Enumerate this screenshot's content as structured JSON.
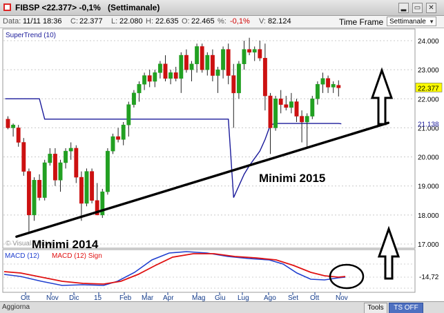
{
  "window": {
    "symbol_title": "FIBSP <22.377> -0,1%",
    "period_title": "(Settimanale)",
    "minimize_glyph": "▂",
    "restore_glyph": "▭",
    "close_glyph": "✕"
  },
  "info_bar": {
    "date_label": "Data:",
    "date_value": "11/11 18:36",
    "close_label": "C:",
    "close_value": "22.377",
    "low_label": "L:",
    "low_value": "22.080",
    "high_label": "H:",
    "high_value": "22.635",
    "open_label": "O:",
    "open_value": "22.465",
    "pct_label": "%:",
    "pct_value": "-0,1%",
    "volume_label": "V:",
    "volume_value": "82.124",
    "timeframe_label": "Time Frame",
    "timeframe_value": "Settimanale"
  },
  "price_panel": {
    "indicator_label": "SuperTrend (10)",
    "watermark": "© Visual Trader",
    "price_axis": [
      "24.000",
      "23.000",
      "22.000",
      "21.000",
      "20.000",
      "19.000",
      "18.000",
      "17.000"
    ],
    "last_price_tag": "22.377",
    "supertrend_tag": "21.138",
    "annotation_2015": "Minimi 2015",
    "annotation_2014": "Minimi 2014",
    "up_arrow_icon": "up-arrow-icon"
  },
  "macd_panel": {
    "label_macd": "MACD (12)",
    "label_signal": "MACD (12) Sign",
    "value_tag": "-14,72",
    "circle_icon": "ellipse-annotation-icon"
  },
  "time_axis": [
    "Ott",
    "Nov",
    "Dic",
    "15",
    "Feb",
    "Mar",
    "Apr",
    "Mag",
    "Giu",
    "Lug",
    "Ago",
    "Set",
    "Ott",
    "Nov"
  ],
  "status_bar": {
    "left_text": "Aggiorna",
    "tools_label": "Tools",
    "ts_label": "TS OFF"
  },
  "colors": {
    "bull": "#22a022",
    "bear": "#cc1111",
    "supertrend": "#1a1a9a",
    "macd": "#1f3fcf",
    "signal": "#e01010",
    "price_tag_bg": "#ffff00",
    "axis_blue": "#123a8a"
  },
  "chart_data": {
    "type": "candlestick",
    "timeframe": "weekly",
    "y_range": [
      17.0,
      24.2
    ],
    "candles": [
      {
        "o": 21.3,
        "h": 21.4,
        "l": 20.95,
        "c": 21.0
      },
      {
        "o": 21.0,
        "h": 21.15,
        "l": 20.7,
        "c": 21.1
      },
      {
        "o": 21.0,
        "h": 21.1,
        "l": 20.35,
        "c": 20.5
      },
      {
        "o": 20.5,
        "h": 20.65,
        "l": 19.35,
        "c": 19.5
      },
      {
        "o": 19.5,
        "h": 19.6,
        "l": 17.4,
        "c": 18.0
      },
      {
        "o": 18.0,
        "h": 19.3,
        "l": 17.8,
        "c": 19.2
      },
      {
        "o": 19.2,
        "h": 19.4,
        "l": 18.5,
        "c": 18.6
      },
      {
        "o": 18.6,
        "h": 19.9,
        "l": 18.5,
        "c": 19.8
      },
      {
        "o": 19.8,
        "h": 20.3,
        "l": 19.7,
        "c": 20.1
      },
      {
        "o": 20.1,
        "h": 20.3,
        "l": 19.0,
        "c": 19.2
      },
      {
        "o": 19.2,
        "h": 19.9,
        "l": 18.8,
        "c": 19.8
      },
      {
        "o": 19.8,
        "h": 20.3,
        "l": 19.6,
        "c": 20.2
      },
      {
        "o": 20.2,
        "h": 20.5,
        "l": 19.9,
        "c": 20.3
      },
      {
        "o": 20.3,
        "h": 20.4,
        "l": 19.1,
        "c": 19.3
      },
      {
        "o": 19.3,
        "h": 19.5,
        "l": 17.8,
        "c": 18.4
      },
      {
        "o": 18.4,
        "h": 19.6,
        "l": 18.3,
        "c": 19.5
      },
      {
        "o": 19.5,
        "h": 19.6,
        "l": 18.4,
        "c": 18.5
      },
      {
        "o": 18.5,
        "h": 19.1,
        "l": 18.0,
        "c": 18.0
      },
      {
        "o": 18.0,
        "h": 18.9,
        "l": 17.9,
        "c": 18.8
      },
      {
        "o": 18.8,
        "h": 20.3,
        "l": 18.7,
        "c": 20.2
      },
      {
        "o": 20.2,
        "h": 20.8,
        "l": 20.1,
        "c": 20.7
      },
      {
        "o": 20.7,
        "h": 21.0,
        "l": 20.5,
        "c": 20.6
      },
      {
        "o": 20.6,
        "h": 21.2,
        "l": 20.4,
        "c": 21.1
      },
      {
        "o": 21.1,
        "h": 21.9,
        "l": 20.7,
        "c": 21.8
      },
      {
        "o": 21.8,
        "h": 22.3,
        "l": 21.7,
        "c": 22.2
      },
      {
        "o": 22.2,
        "h": 22.6,
        "l": 21.9,
        "c": 22.5
      },
      {
        "o": 22.5,
        "h": 22.9,
        "l": 22.3,
        "c": 22.8
      },
      {
        "o": 22.8,
        "h": 23.0,
        "l": 22.4,
        "c": 22.6
      },
      {
        "o": 22.6,
        "h": 23.0,
        "l": 22.4,
        "c": 22.9
      },
      {
        "o": 22.9,
        "h": 23.3,
        "l": 22.7,
        "c": 23.2
      },
      {
        "o": 23.2,
        "h": 23.5,
        "l": 22.6,
        "c": 22.7
      },
      {
        "o": 22.7,
        "h": 23.0,
        "l": 22.5,
        "c": 22.9
      },
      {
        "o": 22.9,
        "h": 23.1,
        "l": 22.6,
        "c": 22.7
      },
      {
        "o": 22.7,
        "h": 23.6,
        "l": 22.2,
        "c": 23.5
      },
      {
        "o": 23.5,
        "h": 23.7,
        "l": 22.9,
        "c": 23.0
      },
      {
        "o": 23.0,
        "h": 23.3,
        "l": 22.6,
        "c": 23.2
      },
      {
        "o": 23.2,
        "h": 23.9,
        "l": 22.9,
        "c": 23.8
      },
      {
        "o": 23.8,
        "h": 23.9,
        "l": 22.9,
        "c": 23.0
      },
      {
        "o": 23.0,
        "h": 23.6,
        "l": 22.8,
        "c": 23.5
      },
      {
        "o": 23.5,
        "h": 23.7,
        "l": 22.6,
        "c": 22.8
      },
      {
        "o": 22.8,
        "h": 23.1,
        "l": 22.2,
        "c": 23.0
      },
      {
        "o": 23.0,
        "h": 23.8,
        "l": 22.7,
        "c": 23.7
      },
      {
        "o": 23.7,
        "h": 23.9,
        "l": 22.5,
        "c": 22.8
      },
      {
        "o": 22.8,
        "h": 23.2,
        "l": 21.0,
        "c": 22.2
      },
      {
        "o": 22.2,
        "h": 23.3,
        "l": 22.0,
        "c": 23.2
      },
      {
        "o": 23.2,
        "h": 24.0,
        "l": 23.0,
        "c": 23.7
      },
      {
        "o": 23.7,
        "h": 24.1,
        "l": 23.5,
        "c": 23.6
      },
      {
        "o": 23.6,
        "h": 23.8,
        "l": 23.3,
        "c": 23.7
      },
      {
        "o": 23.7,
        "h": 24.0,
        "l": 23.3,
        "c": 23.4
      },
      {
        "o": 23.4,
        "h": 23.9,
        "l": 21.6,
        "c": 22.1
      },
      {
        "o": 22.1,
        "h": 22.2,
        "l": 20.1,
        "c": 21.0
      },
      {
        "o": 21.0,
        "h": 22.1,
        "l": 20.9,
        "c": 22.0
      },
      {
        "o": 22.0,
        "h": 22.3,
        "l": 21.5,
        "c": 21.8
      },
      {
        "o": 21.8,
        "h": 22.1,
        "l": 21.6,
        "c": 21.7
      },
      {
        "o": 21.7,
        "h": 22.2,
        "l": 21.5,
        "c": 21.9
      },
      {
        "o": 21.9,
        "h": 22.0,
        "l": 21.2,
        "c": 21.4
      },
      {
        "o": 21.4,
        "h": 21.6,
        "l": 20.5,
        "c": 21.2
      },
      {
        "o": 21.2,
        "h": 21.5,
        "l": 20.3,
        "c": 21.4
      },
      {
        "o": 21.4,
        "h": 22.1,
        "l": 21.3,
        "c": 22.0
      },
      {
        "o": 22.0,
        "h": 22.6,
        "l": 21.8,
        "c": 22.5
      },
      {
        "o": 22.5,
        "h": 22.9,
        "l": 22.2,
        "c": 22.7
      },
      {
        "o": 22.7,
        "h": 22.8,
        "l": 22.2,
        "c": 22.4
      },
      {
        "o": 22.4,
        "h": 22.6,
        "l": 22.2,
        "c": 22.5
      },
      {
        "o": 22.465,
        "h": 22.635,
        "l": 22.08,
        "c": 22.377
      }
    ],
    "supertrend": [
      22.0,
      22.0,
      22.0,
      22.0,
      22.0,
      22.0,
      22.0,
      21.3,
      21.3,
      21.3,
      21.3,
      21.3,
      21.3,
      21.3,
      21.3,
      21.3,
      21.3,
      21.3,
      21.3,
      21.3,
      21.3,
      21.3,
      21.3,
      21.3,
      21.3,
      21.3,
      21.3,
      21.3,
      21.3,
      21.3,
      21.3,
      21.3,
      21.3,
      21.3,
      21.3,
      21.3,
      21.3,
      21.3,
      21.3,
      21.3,
      21.3,
      21.3,
      21.3,
      18.6,
      19.0,
      19.4,
      19.7,
      19.95,
      20.2,
      20.6,
      21.1,
      21.15,
      21.15,
      21.15,
      21.15,
      21.15,
      21.15,
      21.15,
      21.15,
      21.15,
      21.15,
      21.15,
      21.15,
      21.15
    ],
    "supertrend_last": 21.138,
    "macd_value_label": -14.72,
    "trendline": {
      "from_candle": 4,
      "from_price": 17.35,
      "to_candle": 63,
      "to_price": 21.1
    },
    "x_months": [
      "Ott",
      "Nov",
      "Dic",
      "15",
      "Feb",
      "Mar",
      "Apr",
      "Mag",
      "Giu",
      "Lug",
      "Ago",
      "Set",
      "Ott",
      "Nov"
    ]
  }
}
